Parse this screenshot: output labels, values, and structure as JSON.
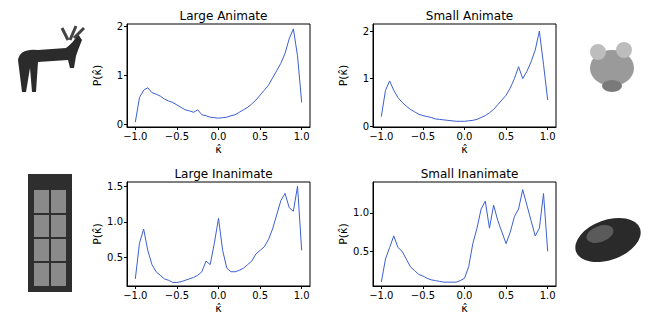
{
  "chart_data": [
    {
      "type": "line",
      "title": "Large Animate",
      "x_label": "κ̂",
      "y_label": "P(κ̂)",
      "color": "#3c5fd0",
      "x": [
        -1.0,
        -0.95,
        -0.9,
        -0.85,
        -0.8,
        -0.75,
        -0.7,
        -0.65,
        -0.6,
        -0.55,
        -0.5,
        -0.45,
        -0.4,
        -0.35,
        -0.3,
        -0.25,
        -0.2,
        -0.15,
        -0.1,
        -0.05,
        0.0,
        0.05,
        0.1,
        0.15,
        0.2,
        0.25,
        0.3,
        0.35,
        0.4,
        0.45,
        0.5,
        0.55,
        0.6,
        0.65,
        0.7,
        0.75,
        0.8,
        0.85,
        0.9,
        0.95,
        1.0
      ],
      "values": [
        0.05,
        0.55,
        0.7,
        0.75,
        0.65,
        0.62,
        0.58,
        0.52,
        0.48,
        0.45,
        0.4,
        0.35,
        0.3,
        0.28,
        0.25,
        0.3,
        0.2,
        0.18,
        0.15,
        0.14,
        0.13,
        0.14,
        0.15,
        0.18,
        0.2,
        0.25,
        0.3,
        0.35,
        0.42,
        0.5,
        0.6,
        0.7,
        0.8,
        0.95,
        1.1,
        1.25,
        1.45,
        1.75,
        1.95,
        1.4,
        0.45
      ],
      "xlim": [
        -1.1,
        1.1
      ],
      "xticks": [
        {
          "value": -1,
          "label": "−1.0"
        },
        {
          "value": -0.5,
          "label": "−0.5"
        },
        {
          "value": 0,
          "label": "0.0"
        },
        0.5,
        {
          "value": 1,
          "label": "1.0"
        }
      ],
      "ylim": [
        -0.05,
        2.05
      ],
      "yticks": [
        0,
        1,
        2
      ]
    },
    {
      "type": "line",
      "title": "Small Animate",
      "x_label": "κ̂",
      "y_label": "P(κ̂)",
      "color": "#3c5fd0",
      "x": [
        -1.0,
        -0.95,
        -0.9,
        -0.85,
        -0.8,
        -0.75,
        -0.7,
        -0.65,
        -0.6,
        -0.55,
        -0.5,
        -0.45,
        -0.4,
        -0.35,
        -0.3,
        -0.25,
        -0.2,
        -0.15,
        -0.1,
        -0.05,
        0.0,
        0.05,
        0.1,
        0.15,
        0.2,
        0.25,
        0.3,
        0.35,
        0.4,
        0.45,
        0.5,
        0.55,
        0.6,
        0.65,
        0.7,
        0.75,
        0.8,
        0.85,
        0.9,
        0.95,
        1.0
      ],
      "values": [
        0.2,
        0.75,
        0.95,
        0.75,
        0.6,
        0.5,
        0.42,
        0.35,
        0.3,
        0.25,
        0.22,
        0.2,
        0.18,
        0.15,
        0.14,
        0.13,
        0.12,
        0.11,
        0.1,
        0.1,
        0.1,
        0.11,
        0.12,
        0.14,
        0.18,
        0.22,
        0.28,
        0.35,
        0.45,
        0.55,
        0.65,
        0.8,
        1.0,
        1.25,
        1.0,
        1.15,
        1.35,
        1.6,
        2.0,
        1.3,
        0.55
      ],
      "xlim": [
        -1.1,
        1.1
      ],
      "xticks": [
        {
          "value": -1,
          "label": "−1.0"
        },
        {
          "value": -0.5,
          "label": "−0.5"
        },
        {
          "value": 0,
          "label": "0.0"
        },
        0.5,
        {
          "value": 1,
          "label": "1.0"
        }
      ],
      "ylim": [
        -0.02,
        2.15
      ],
      "yticks": [
        0,
        1,
        2
      ]
    },
    {
      "type": "line",
      "title": "Large Inanimate",
      "x_label": "κ̂",
      "y_label": "P(κ̂)",
      "color": "#3c5fd0",
      "x": [
        -1.0,
        -0.95,
        -0.9,
        -0.85,
        -0.8,
        -0.75,
        -0.7,
        -0.65,
        -0.6,
        -0.55,
        -0.5,
        -0.45,
        -0.4,
        -0.35,
        -0.3,
        -0.25,
        -0.2,
        -0.15,
        -0.1,
        -0.05,
        0.0,
        0.05,
        0.1,
        0.15,
        0.2,
        0.25,
        0.3,
        0.35,
        0.4,
        0.45,
        0.5,
        0.55,
        0.6,
        0.65,
        0.7,
        0.75,
        0.8,
        0.85,
        0.9,
        0.95,
        1.0
      ],
      "values": [
        0.2,
        0.7,
        0.9,
        0.6,
        0.4,
        0.3,
        0.25,
        0.2,
        0.18,
        0.15,
        0.15,
        0.16,
        0.18,
        0.2,
        0.22,
        0.25,
        0.3,
        0.45,
        0.4,
        0.7,
        1.05,
        0.6,
        0.35,
        0.3,
        0.3,
        0.32,
        0.35,
        0.4,
        0.45,
        0.55,
        0.6,
        0.65,
        0.75,
        0.9,
        1.1,
        1.3,
        1.4,
        1.2,
        1.15,
        1.5,
        0.6
      ],
      "xlim": [
        -1.1,
        1.1
      ],
      "xticks": [
        {
          "value": -1,
          "label": "−1.0"
        },
        {
          "value": -0.5,
          "label": "−0.5"
        },
        {
          "value": 0,
          "label": "0.0"
        },
        0.5,
        {
          "value": 1,
          "label": "1.0"
        }
      ],
      "ylim": [
        0.1,
        1.56
      ],
      "yticks": [
        0.5,
        {
          "value": 1,
          "label": "1.0"
        },
        1.5
      ]
    },
    {
      "type": "line",
      "title": "Small Inanimate",
      "x_label": "κ̂",
      "y_label": "P(κ̂)",
      "color": "#3c5fd0",
      "x": [
        -1.0,
        -0.95,
        -0.9,
        -0.85,
        -0.8,
        -0.75,
        -0.7,
        -0.65,
        -0.6,
        -0.55,
        -0.5,
        -0.45,
        -0.4,
        -0.35,
        -0.3,
        -0.25,
        -0.2,
        -0.15,
        -0.1,
        -0.05,
        0.0,
        0.05,
        0.1,
        0.15,
        0.2,
        0.25,
        0.3,
        0.35,
        0.4,
        0.45,
        0.5,
        0.55,
        0.6,
        0.65,
        0.7,
        0.75,
        0.8,
        0.85,
        0.9,
        0.95,
        1.0
      ],
      "values": [
        0.1,
        0.4,
        0.55,
        0.7,
        0.55,
        0.5,
        0.4,
        0.3,
        0.25,
        0.2,
        0.18,
        0.15,
        0.13,
        0.12,
        0.11,
        0.1,
        0.1,
        0.1,
        0.1,
        0.12,
        0.15,
        0.3,
        0.6,
        0.8,
        1.05,
        1.15,
        0.8,
        1.1,
        0.9,
        0.75,
        0.6,
        0.75,
        0.95,
        1.05,
        1.3,
        1.1,
        0.9,
        0.7,
        0.8,
        1.25,
        0.5
      ],
      "xlim": [
        -1.1,
        1.1
      ],
      "xticks": [
        {
          "value": -1,
          "label": "−1.0"
        },
        {
          "value": -0.5,
          "label": "−0.5"
        },
        {
          "value": 0,
          "label": "0.0"
        },
        0.5,
        {
          "value": 1,
          "label": "1.0"
        }
      ],
      "ylim": [
        0.05,
        1.4
      ],
      "yticks": [
        0.5,
        {
          "value": 1,
          "label": "1.0"
        }
      ]
    }
  ]
}
